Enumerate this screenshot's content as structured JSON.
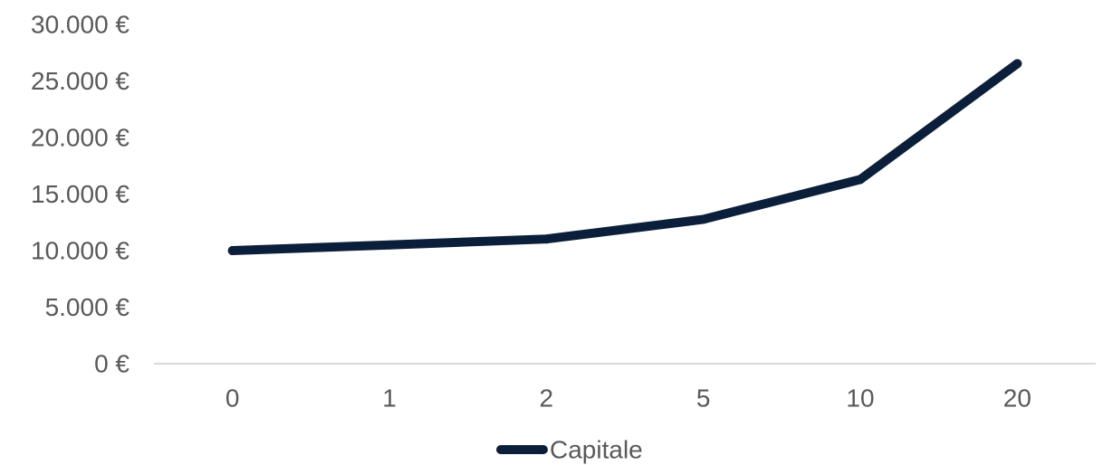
{
  "chart_data": {
    "type": "line",
    "categories": [
      "0",
      "1",
      "2",
      "5",
      "10",
      "20"
    ],
    "series": [
      {
        "name": "Capitale",
        "values": [
          10000,
          10500,
          11025,
          12763,
          16289,
          26533
        ],
        "color": "#0b1f3a"
      }
    ],
    "y_ticks": [
      "0 €",
      "5.000 €",
      "10.000 €",
      "15.000 €",
      "20.000 €",
      "25.000 €",
      "30.000 €"
    ],
    "ylim": [
      0,
      30000
    ],
    "grid": false,
    "legend": "bottom-center"
  }
}
